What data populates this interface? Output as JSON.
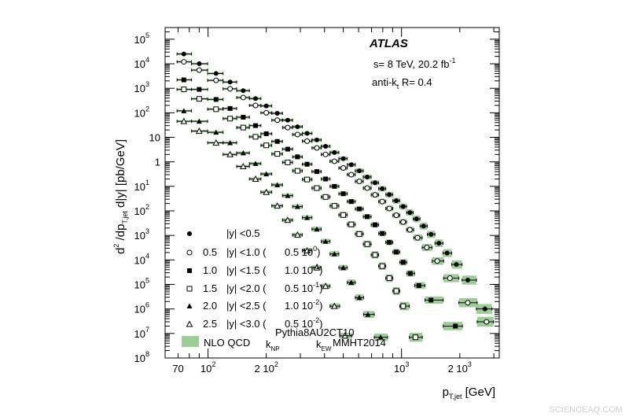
{
  "chart_data": {
    "type": "scatter",
    "title": "",
    "experiment_label": "ATLAS",
    "energy_label": "s= 8 TeV, 20.2 fb",
    "energy_label_sup": "-1",
    "algo_label_main": "anti-k",
    "algo_label_sub": "t",
    "algo_label_tail": " R= 0.4",
    "xlabel_main": "p",
    "xlabel_sub": "T,jet",
    "xlabel_tail": " [GeV]",
    "ylabel": {
      "p1": "d",
      "p1sup": "2",
      "p2": " /dp",
      "p2sub": "T,jet",
      "p3": " d|y| [pb/GeV]"
    },
    "x_scale": "log",
    "y_scale": "log",
    "xlim": [
      60,
      3200
    ],
    "ylim": [
      1e-08,
      300000.0
    ],
    "x_ticks": [
      {
        "value": 70,
        "label": "70",
        "exp": ""
      },
      {
        "value": 100,
        "label": "10",
        "exp": "2"
      },
      {
        "value": 200,
        "label": "2  10",
        "exp": "2"
      },
      {
        "value": 1000,
        "label": "10",
        "exp": "3"
      },
      {
        "value": 2000,
        "label": "2  10",
        "exp": "3"
      }
    ],
    "y_ticks": [
      {
        "value": 100000.0,
        "label": "10",
        "exp": "5"
      },
      {
        "value": 10000.0,
        "label": "10",
        "exp": "4"
      },
      {
        "value": 1000.0,
        "label": "10",
        "exp": "3"
      },
      {
        "value": 100.0,
        "label": "10",
        "exp": "2"
      },
      {
        "value": 10,
        "label": "10",
        "exp": ""
      },
      {
        "value": 1,
        "label": "1",
        "exp": ""
      },
      {
        "value": 0.1,
        "label": "10",
        "exp": "1"
      },
      {
        "value": 0.01,
        "label": "10",
        "exp": "2"
      },
      {
        "value": 0.001,
        "label": "10",
        "exp": "3"
      },
      {
        "value": 0.0001,
        "label": "10",
        "exp": "4"
      },
      {
        "value": 1e-05,
        "label": "10",
        "exp": "5"
      },
      {
        "value": 1e-06,
        "label": "10",
        "exp": "6"
      },
      {
        "value": 1e-07,
        "label": "10",
        "exp": "7"
      },
      {
        "value": 1e-08,
        "label": "10",
        "exp": "8"
      }
    ],
    "legend_placement": "bottom-left",
    "colors": {
      "nlo_band": "#9dce97",
      "marker": "#000000"
    },
    "series": [
      {
        "name": "|y| <0.5",
        "legend_parts": {
          "pre": "",
          "mid": "|y| <0.5",
          "scale": "",
          "sup": ""
        },
        "marker": "filled-circle",
        "points": [
          [
            75,
            25000
          ],
          [
            90,
            10000
          ],
          [
            110,
            4000
          ],
          [
            130,
            1800
          ],
          [
            152,
            800
          ],
          [
            176,
            380
          ],
          [
            200,
            190
          ],
          [
            228,
            95
          ],
          [
            258,
            50
          ],
          [
            290,
            27
          ],
          [
            325,
            14.5
          ],
          [
            365,
            7.8
          ],
          [
            405,
            4.3
          ],
          [
            450,
            2.4
          ],
          [
            500,
            1.35
          ],
          [
            550,
            0.76
          ],
          [
            605,
            0.43
          ],
          [
            665,
            0.24
          ],
          [
            730,
            0.14
          ],
          [
            795,
            0.08
          ],
          [
            865,
            0.046
          ],
          [
            940,
            0.026
          ],
          [
            1020,
            0.015
          ],
          [
            1105,
            0.0085
          ],
          [
            1195,
            0.0047
          ],
          [
            1300,
            0.0024
          ],
          [
            1420,
            0.0011
          ],
          [
            1560,
            0.00048
          ],
          [
            1720,
            0.00019
          ],
          [
            1920,
            6.5e-05
          ],
          [
            2200,
            1.5e-05
          ],
          [
            2700,
            1e-06
          ]
        ]
      },
      {
        "name": "0.5 |y| <1.0 ( 0.5 10^0)",
        "legend_parts": {
          "pre": "0.5",
          "mid": "|y| <1.0 (",
          "scale": "0.5 10",
          "sup": "0"
        },
        "marker": "open-circle",
        "points": [
          [
            75,
            12000
          ],
          [
            90,
            5500
          ],
          [
            110,
            2100
          ],
          [
            130,
            950
          ],
          [
            152,
            420
          ],
          [
            176,
            200
          ],
          [
            200,
            100
          ],
          [
            228,
            50
          ],
          [
            258,
            25
          ],
          [
            290,
            13
          ],
          [
            325,
            7
          ],
          [
            365,
            3.7
          ],
          [
            405,
            2.0
          ],
          [
            450,
            1.05
          ],
          [
            500,
            0.56
          ],
          [
            550,
            0.3
          ],
          [
            605,
            0.16
          ],
          [
            665,
            0.085
          ],
          [
            730,
            0.045
          ],
          [
            795,
            0.024
          ],
          [
            865,
            0.0125
          ],
          [
            940,
            0.0066
          ],
          [
            1020,
            0.0035
          ],
          [
            1105,
            0.0017
          ],
          [
            1210,
            0.0008
          ],
          [
            1350,
            0.00032
          ],
          [
            1530,
            9e-05
          ],
          [
            1780,
            1.8e-05
          ],
          [
            2200,
            1.8e-06
          ],
          [
            2750,
            3e-07
          ]
        ]
      },
      {
        "name": "1.0 |y| <1.5 ( 1.0 10^-1)",
        "legend_parts": {
          "pre": "1.0",
          "mid": "|y| <1.5 (",
          "scale": "1.0 10",
          "sup": "-1"
        },
        "marker": "filled-square",
        "points": [
          [
            75,
            2200
          ],
          [
            90,
            900
          ],
          [
            110,
            350
          ],
          [
            130,
            150
          ],
          [
            152,
            66
          ],
          [
            176,
            30
          ],
          [
            200,
            14
          ],
          [
            228,
            6.8
          ],
          [
            258,
            3.3
          ],
          [
            290,
            1.6
          ],
          [
            325,
            0.8
          ],
          [
            365,
            0.4
          ],
          [
            405,
            0.2
          ],
          [
            450,
            0.1
          ],
          [
            500,
            0.05
          ],
          [
            550,
            0.024
          ],
          [
            605,
            0.012
          ],
          [
            665,
            0.0058
          ],
          [
            730,
            0.0027
          ],
          [
            795,
            0.0012
          ],
          [
            865,
            0.00052
          ],
          [
            940,
            0.00021
          ],
          [
            1020,
            8e-05
          ],
          [
            1110,
            2.8e-05
          ],
          [
            1230,
            9e-06
          ],
          [
            1420,
            2.3e-06
          ],
          [
            1900,
            2e-07
          ]
        ]
      },
      {
        "name": "1.5 |y| <2.0 ( 0.5 10^-1)",
        "legend_parts": {
          "pre": "1.5",
          "mid": "|y| <2.0 (",
          "scale": "0.5 10",
          "sup": "-1"
        },
        "marker": "open-square",
        "points": [
          [
            75,
            900
          ],
          [
            90,
            370
          ],
          [
            110,
            140
          ],
          [
            130,
            58
          ],
          [
            152,
            25
          ],
          [
            176,
            10.5
          ],
          [
            200,
            4.7
          ],
          [
            228,
            2.1
          ],
          [
            258,
            0.95
          ],
          [
            290,
            0.43
          ],
          [
            325,
            0.19
          ],
          [
            365,
            0.085
          ],
          [
            405,
            0.037
          ],
          [
            450,
            0.016
          ],
          [
            500,
            0.0068
          ],
          [
            550,
            0.0028
          ],
          [
            605,
            0.00114
          ],
          [
            665,
            0.00044
          ],
          [
            730,
            0.00016
          ],
          [
            795,
            5.6e-05
          ],
          [
            865,
            1.8e-05
          ],
          [
            940,
            5.4e-06
          ],
          [
            1020,
            1.3e-06
          ],
          [
            1180,
            7e-08
          ]
        ]
      },
      {
        "name": "2.0 |y| <2.5 ( 1.0 10^-2)",
        "legend_parts": {
          "pre": "2.0",
          "mid": "|y| <2.5 (",
          "scale": "1.0 10",
          "sup": "-2"
        },
        "marker": "filled-triangle",
        "points": [
          [
            75,
            120
          ],
          [
            90,
            45
          ],
          [
            110,
            16
          ],
          [
            130,
            6
          ],
          [
            152,
            2.3
          ],
          [
            176,
            0.85
          ],
          [
            200,
            0.32
          ],
          [
            228,
            0.115
          ],
          [
            258,
            0.042
          ],
          [
            290,
            0.015
          ],
          [
            325,
            0.0053
          ],
          [
            365,
            0.0018
          ],
          [
            405,
            0.00057
          ],
          [
            450,
            0.000175
          ],
          [
            500,
            4.8e-05
          ],
          [
            550,
            1.2e-05
          ],
          [
            605,
            2.9e-06
          ],
          [
            670,
            6e-07
          ],
          [
            780,
            7e-08
          ]
        ]
      },
      {
        "name": "2.5 |y| <3.0 ( 0.5 10^-2)",
        "legend_parts": {
          "pre": "2.5",
          "mid": "|y| <3.0 (",
          "scale": "0.5 10",
          "sup": "-2"
        },
        "marker": "open-triangle",
        "points": [
          [
            75,
            45
          ],
          [
            90,
            18
          ],
          [
            110,
            6
          ],
          [
            130,
            2
          ],
          [
            152,
            0.65
          ],
          [
            176,
            0.2
          ],
          [
            200,
            0.058
          ],
          [
            228,
            0.016
          ],
          [
            258,
            0.0042
          ],
          [
            290,
            0.00105
          ],
          [
            325,
            0.00024
          ],
          [
            365,
            4.8e-05
          ],
          [
            405,
            8.5e-06
          ],
          [
            450,
            1.3e-06
          ],
          [
            510,
            8e-08
          ]
        ]
      }
    ],
    "nlo_legend": {
      "label": "NLO QCD",
      "knp_main": "k",
      "knp_sub": "NP",
      "knp_sup": "Pythia8AU2CT10",
      "kew_main": "k",
      "kew_sub": "EW",
      "pdf": "MMHT2014"
    }
  },
  "watermark": "SCIENCEAQ.COM"
}
